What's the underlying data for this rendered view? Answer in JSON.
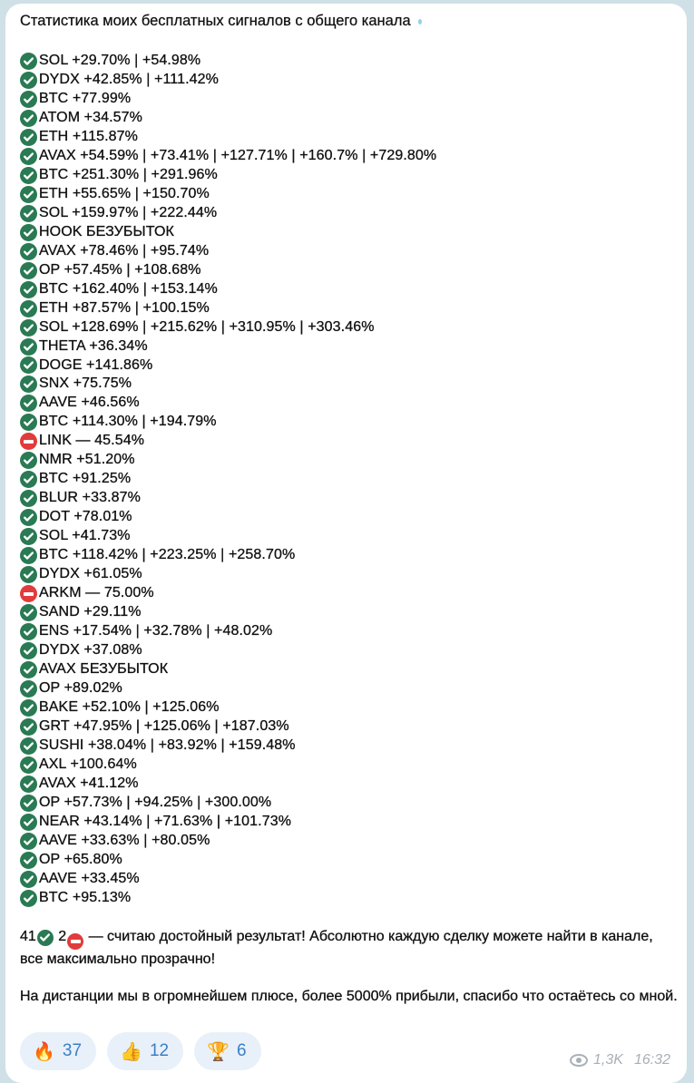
{
  "message": {
    "title": "Статистика моих бесплатных сигналов с общего канала",
    "signals": [
      {
        "status": "ok",
        "text": "SOL +29.70% | +54.98%"
      },
      {
        "status": "ok",
        "text": "DYDX +42.85% | +111.42%"
      },
      {
        "status": "ok",
        "text": "BTC +77.99%"
      },
      {
        "status": "ok",
        "text": "ATOM +34.57%"
      },
      {
        "status": "ok",
        "text": "ETH +115.87%"
      },
      {
        "status": "ok",
        "text": "AVAX +54.59% | +73.41% | +127.71% | +160.7% | +729.80%"
      },
      {
        "status": "ok",
        "text": "BTC +251.30% | +291.96%"
      },
      {
        "status": "ok",
        "text": "ETH +55.65% | +150.70%"
      },
      {
        "status": "ok",
        "text": "SOL +159.97% | +222.44%"
      },
      {
        "status": "ok",
        "text": "HOOK БЕЗУБЫТОК"
      },
      {
        "status": "ok",
        "text": "AVAX +78.46% | +95.74%"
      },
      {
        "status": "ok",
        "text": "OP +57.45% | +108.68%"
      },
      {
        "status": "ok",
        "text": "BTC +162.40% | +153.14%"
      },
      {
        "status": "ok",
        "text": "ETH +87.57% | +100.15%"
      },
      {
        "status": "ok",
        "text": "SOL +128.69% | +215.62% | +310.95% | +303.46%"
      },
      {
        "status": "ok",
        "text": "THETA +36.34%"
      },
      {
        "status": "ok",
        "text": "DOGE +141.86%"
      },
      {
        "status": "ok",
        "text": "SNX +75.75%"
      },
      {
        "status": "ok",
        "text": "AAVE +46.56%"
      },
      {
        "status": "ok",
        "text": "BTC +114.30% | +194.79%"
      },
      {
        "status": "stop",
        "text": "LINK — 45.54%"
      },
      {
        "status": "ok",
        "text": "NMR +51.20%"
      },
      {
        "status": "ok",
        "text": "BTC +91.25%"
      },
      {
        "status": "ok",
        "text": "BLUR +33.87%"
      },
      {
        "status": "ok",
        "text": "DOT +78.01%"
      },
      {
        "status": "ok",
        "text": "SOL +41.73%"
      },
      {
        "status": "ok",
        "text": "BTC +118.42% | +223.25% | +258.70%"
      },
      {
        "status": "ok",
        "text": "DYDX +61.05%"
      },
      {
        "status": "stop",
        "text": "ARKM — 75.00%"
      },
      {
        "status": "ok",
        "text": "SAND +29.11%"
      },
      {
        "status": "ok",
        "text": "ENS +17.54% | +32.78% | +48.02%"
      },
      {
        "status": "ok",
        "text": "DYDX +37.08%"
      },
      {
        "status": "ok",
        "text": "AVAX БЕЗУБЫТОК"
      },
      {
        "status": "ok",
        "text": "OP +89.02%"
      },
      {
        "status": "ok",
        "text": "BAKE +52.10% | +125.06%"
      },
      {
        "status": "ok",
        "text": "GRT +47.95% | +125.06% | +187.03%"
      },
      {
        "status": "ok",
        "text": "SUSHI +38.04% | +83.92% | +159.48%"
      },
      {
        "status": "ok",
        "text": "AXL +100.64%"
      },
      {
        "status": "ok",
        "text": "AVAX +41.12%"
      },
      {
        "status": "ok",
        "text": "OP +57.73% | +94.25% | +300.00%"
      },
      {
        "status": "ok",
        "text": "NEAR +43.14% | +71.63% | +101.73%"
      },
      {
        "status": "ok",
        "text": "AAVE +33.63% | +80.05%"
      },
      {
        "status": "ok",
        "text": "OP +65.80%"
      },
      {
        "status": "ok",
        "text": "AAVE +33.45%"
      },
      {
        "status": "ok",
        "text": "BTC +95.13%"
      }
    ],
    "summary": {
      "wins": "41",
      "losses": "2",
      "text": " — считаю достойный результат! Абсолютно каждую сделку можете найти в канале, все максимально прозрачно!"
    },
    "closing": "На дистанции мы в огромнейшем плюсе, более 5000% прибыли, спасибо что остаётесь со мной.",
    "reactions": [
      {
        "emoji": "🔥",
        "icon": "fire-icon",
        "count": "37"
      },
      {
        "emoji": "👍",
        "icon": "thumbs-up-icon",
        "count": "12"
      },
      {
        "emoji": "🏆",
        "icon": "trophy-icon",
        "count": "6"
      }
    ],
    "views": "1,3K",
    "time": "16:32"
  },
  "colors": {
    "ok": "#2a7a54",
    "stop": "#e23b3b",
    "reaction_text": "#3b7fc4"
  }
}
